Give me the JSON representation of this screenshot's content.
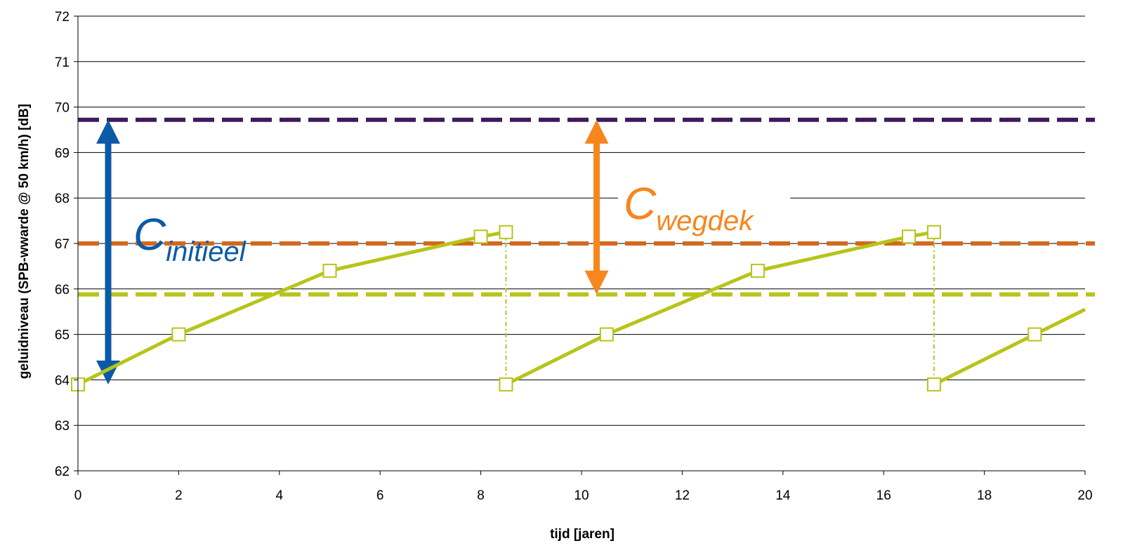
{
  "chart_data": {
    "type": "line",
    "xlabel": "tijd [jaren]",
    "ylabel": "geluidniveau (SPB-wwarde @  50 km/h) [dB]",
    "xlim": [
      0,
      20
    ],
    "ylim": [
      62,
      72
    ],
    "x_ticks": [
      "0",
      "2",
      "4",
      "6",
      "8",
      "10",
      "12",
      "14",
      "16",
      "18",
      "20"
    ],
    "y_ticks": [
      "62",
      "63",
      "64",
      "65",
      "66",
      "67",
      "68",
      "69",
      "70",
      "71",
      "72"
    ],
    "grid": "horizontal",
    "series": [
      {
        "style": "solid-with-square-markers",
        "color": "#B7C41A",
        "points": [
          [
            0,
            63.9
          ],
          [
            2,
            65.0
          ],
          [
            5,
            66.4
          ],
          [
            8,
            67.15
          ],
          [
            8.5,
            67.25
          ],
          [
            8.5,
            63.9
          ],
          [
            10.5,
            65.0
          ],
          [
            13.5,
            66.4
          ],
          [
            16.5,
            67.15
          ],
          [
            17,
            67.25
          ],
          [
            17,
            63.9
          ],
          [
            19,
            65.0
          ],
          [
            20,
            65.55
          ]
        ],
        "markers": [
          [
            0,
            63.9
          ],
          [
            2,
            65.0
          ],
          [
            5,
            66.4
          ],
          [
            8,
            67.15
          ],
          [
            8.5,
            67.25
          ],
          [
            8.5,
            63.9
          ],
          [
            10.5,
            65.0
          ],
          [
            13.5,
            66.4
          ],
          [
            16.5,
            67.15
          ],
          [
            17,
            67.25
          ],
          [
            17,
            63.9
          ],
          [
            19,
            65.0
          ]
        ],
        "drops": [
          [
            8.5,
            67.25,
            63.9
          ],
          [
            17,
            67.25,
            63.9
          ]
        ]
      }
    ],
    "reference_lines": [
      {
        "y": 69.72,
        "color": "#3D1A5C",
        "style": "dashed"
      },
      {
        "y": 67.0,
        "color": "#D2691E",
        "style": "dashed"
      },
      {
        "y": 65.88,
        "color": "#B7C41A",
        "style": "dashed"
      }
    ],
    "annotations": [
      {
        "main": "C",
        "sub": "initieel",
        "color": "#0B5AA6",
        "arrow_x": 0.6,
        "arrow_y": [
          63.9,
          69.72
        ]
      },
      {
        "main": "C",
        "sub": "wegdek",
        "color": "#F7861D",
        "arrow_x": 10.3,
        "arrow_y": [
          65.88,
          69.72
        ]
      }
    ]
  }
}
